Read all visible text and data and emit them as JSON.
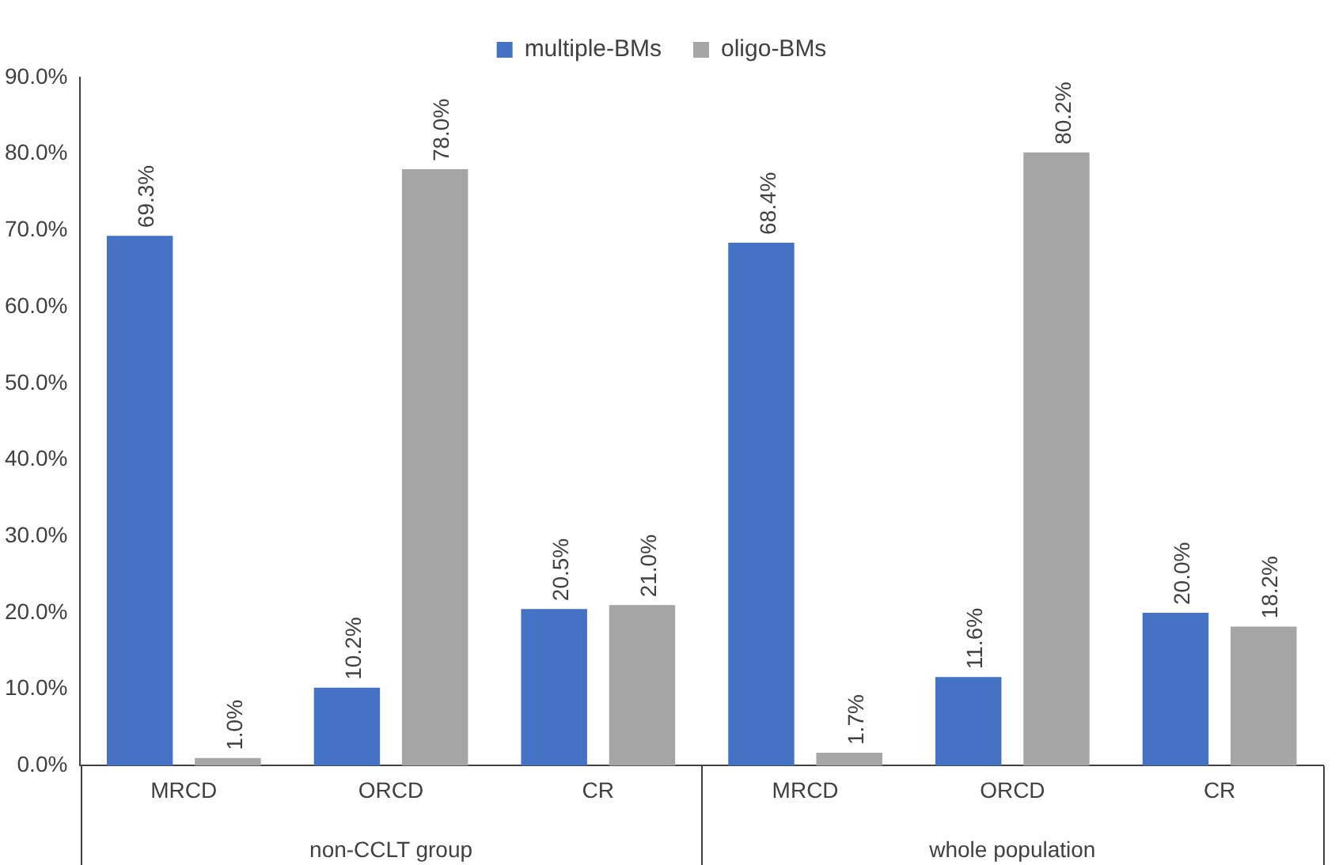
{
  "chart_data": {
    "type": "bar",
    "categories": [
      "MRCD",
      "ORCD",
      "CR",
      "MRCD",
      "ORCD",
      "CR"
    ],
    "series": [
      {
        "name": "multiple-BMs",
        "color": "#4472c4",
        "values": [
          69.3,
          10.2,
          20.5,
          68.4,
          11.6,
          20.0
        ],
        "value_labels": [
          "69.3%",
          "10.2%",
          "20.5%",
          "68.4%",
          "11.6%",
          "20.0%"
        ]
      },
      {
        "name": "oligo-BMs",
        "color": "#a5a5a5",
        "values": [
          1.0,
          78.0,
          21.0,
          1.7,
          80.2,
          18.2
        ],
        "value_labels": [
          "1.0%",
          "78.0%",
          "21.0%",
          "1.7%",
          "80.2%",
          "18.2%"
        ]
      }
    ],
    "ylim": [
      0,
      90
    ],
    "yticks": [
      {
        "value": 0,
        "label": "0.0%"
      },
      {
        "value": 10,
        "label": "10.0%"
      },
      {
        "value": 20,
        "label": "20.0%"
      },
      {
        "value": 30,
        "label": "30.0%"
      },
      {
        "value": 40,
        "label": "40.0%"
      },
      {
        "value": 50,
        "label": "50.0%"
      },
      {
        "value": 60,
        "label": "60.0%"
      },
      {
        "value": 70,
        "label": "70.0%"
      },
      {
        "value": 80,
        "label": "80.0%"
      },
      {
        "value": 90,
        "label": "90.0%"
      }
    ],
    "annotations": [
      "non-CCLT group",
      "whole population"
    ],
    "legend": "top",
    "grid": false
  }
}
